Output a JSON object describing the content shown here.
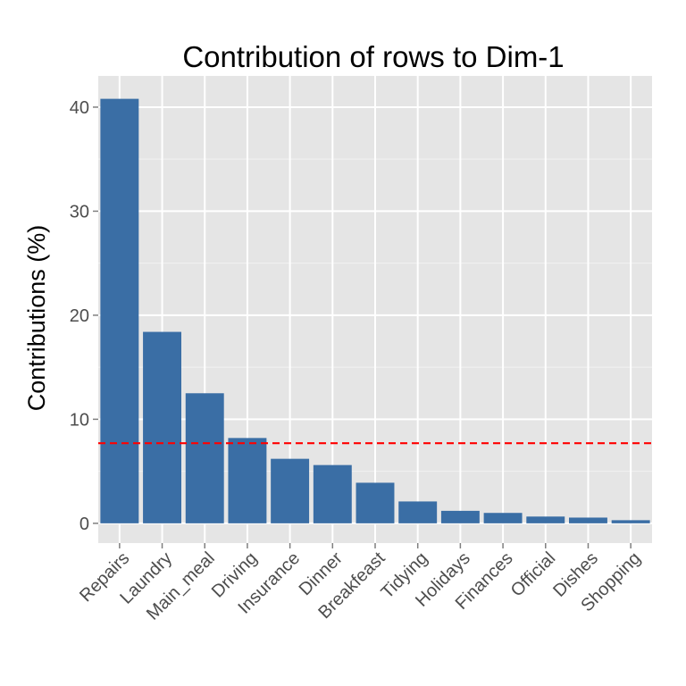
{
  "chart_data": {
    "type": "bar",
    "title": "Contribution of rows to Dim-1",
    "xlabel": "",
    "ylabel": "Contributions (%)",
    "categories": [
      "Repairs",
      "Laundry",
      "Main_meal",
      "Driving",
      "Insurance",
      "Dinner",
      "Breakfeast",
      "Tidying",
      "Holidays",
      "Finances",
      "Official",
      "Dishes",
      "Shopping"
    ],
    "values": [
      40.8,
      18.4,
      12.5,
      8.2,
      6.2,
      5.6,
      3.9,
      2.1,
      1.2,
      1.0,
      0.65,
      0.55,
      0.3
    ],
    "ylim": [
      -1.9,
      43
    ],
    "yticks": [
      0,
      10,
      20,
      30,
      40
    ],
    "reference_line": {
      "value": 7.7,
      "color": "#ff0000",
      "style": "dashed"
    },
    "grid": true,
    "colors": {
      "bar": "#3a6ea5",
      "panel_background": "#e5e5e5",
      "gridline": "#ffffff"
    }
  }
}
